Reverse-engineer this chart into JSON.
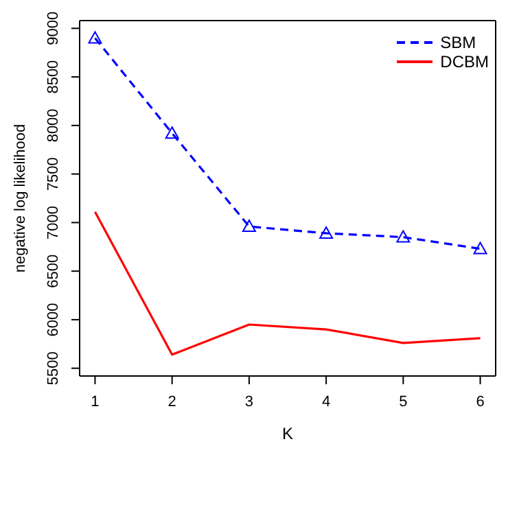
{
  "chart_data": {
    "type": "line",
    "xlabel": "K",
    "ylabel": "negative log likelihood",
    "x": [
      1,
      2,
      3,
      4,
      5,
      6
    ],
    "xlim": [
      0.8,
      6.2
    ],
    "xticks": [
      1,
      2,
      3,
      4,
      5,
      6
    ],
    "ylim": [
      5420,
      9080
    ],
    "yticks": [
      5500,
      6000,
      6500,
      7000,
      7500,
      8000,
      8500,
      9000
    ],
    "grid": false,
    "legend": "top right",
    "series": [
      {
        "name": "SBM",
        "color": "#0000ff",
        "values": [
          8900,
          7920,
          6960,
          6890,
          6850,
          6730
        ],
        "marker": "triangle",
        "line_style": "dashed"
      },
      {
        "name": "DCBM",
        "color": "#ff0000",
        "values": [
          7110,
          5640,
          5950,
          5900,
          5760,
          5810
        ],
        "marker": "none",
        "line_style": "solid"
      }
    ]
  }
}
